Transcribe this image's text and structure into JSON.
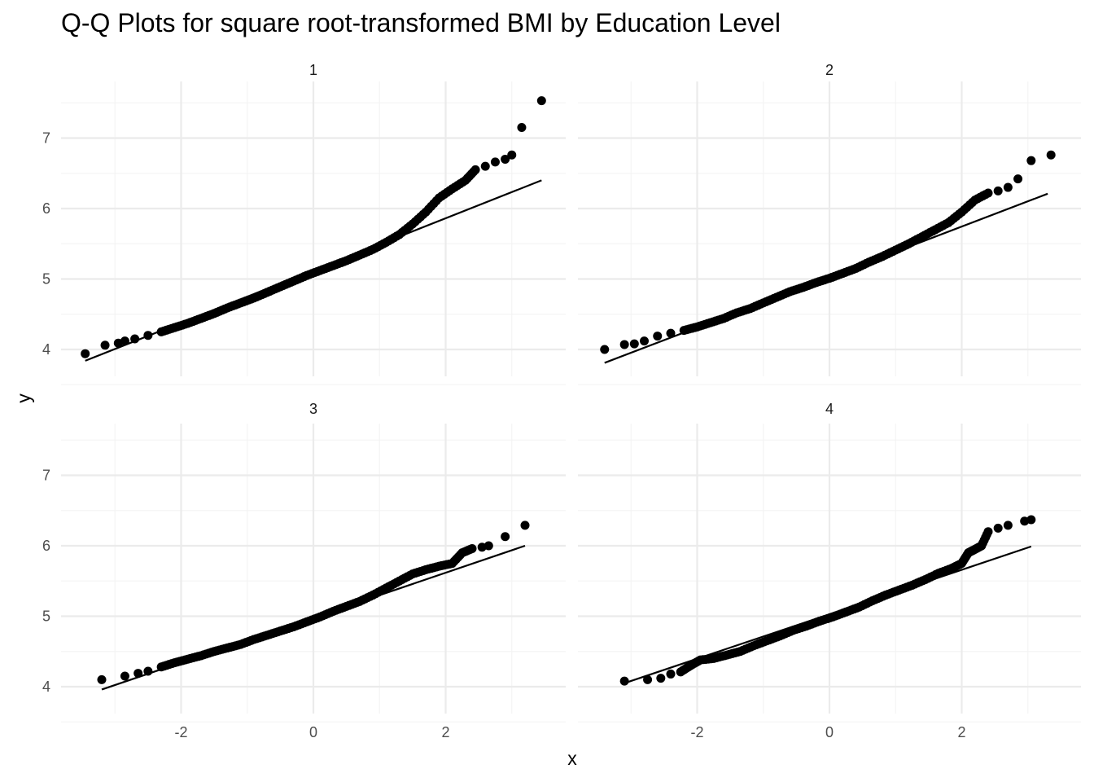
{
  "chart_data": {
    "type": "scatter",
    "title": "Q-Q Plots for square root-transformed BMI by Education Level",
    "xlabel": "x",
    "ylabel": "y",
    "xlim": [
      -3.6,
      3.6
    ],
    "ylim": [
      3.7,
      7.7
    ],
    "x_ticks": [
      -2,
      0,
      2
    ],
    "x_tick_labels": [
      "-2",
      "0",
      "2"
    ],
    "y_ticks": [
      4,
      5,
      6,
      7
    ],
    "y_tick_labels": [
      "4",
      "5",
      "6",
      "7"
    ],
    "grid": true,
    "colors": {
      "points": "#000000",
      "line": "#000000",
      "grid_major": "#ebebeb",
      "grid_minor": "#f4f4f4"
    },
    "panels": [
      {
        "label": "1",
        "line": {
          "x": [
            -3.45,
            3.45
          ],
          "y": [
            3.84,
            6.4
          ]
        },
        "points": [
          [
            -3.45,
            3.94
          ],
          [
            -3.15,
            4.06
          ],
          [
            -2.95,
            4.09
          ],
          [
            -2.85,
            4.12
          ],
          [
            -2.7,
            4.15
          ],
          [
            -2.5,
            4.2
          ],
          [
            -2.3,
            4.25
          ],
          [
            -2.1,
            4.31
          ],
          [
            -1.9,
            4.37
          ],
          [
            -1.7,
            4.44
          ],
          [
            -1.5,
            4.51
          ],
          [
            -1.3,
            4.59
          ],
          [
            -1.1,
            4.66
          ],
          [
            -0.9,
            4.73
          ],
          [
            -0.7,
            4.81
          ],
          [
            -0.5,
            4.89
          ],
          [
            -0.3,
            4.97
          ],
          [
            -0.1,
            5.05
          ],
          [
            0.1,
            5.12
          ],
          [
            0.3,
            5.19
          ],
          [
            0.5,
            5.26
          ],
          [
            0.7,
            5.34
          ],
          [
            0.9,
            5.42
          ],
          [
            1.1,
            5.52
          ],
          [
            1.3,
            5.63
          ],
          [
            1.5,
            5.78
          ],
          [
            1.7,
            5.95
          ],
          [
            1.9,
            6.15
          ],
          [
            2.1,
            6.28
          ],
          [
            2.3,
            6.4
          ],
          [
            2.45,
            6.55
          ],
          [
            2.6,
            6.6
          ],
          [
            2.75,
            6.66
          ],
          [
            2.9,
            6.7
          ],
          [
            3.0,
            6.76
          ],
          [
            3.15,
            7.15
          ],
          [
            3.45,
            7.53
          ]
        ]
      },
      {
        "label": "2",
        "line": {
          "x": [
            -3.4,
            3.3
          ],
          "y": [
            3.81,
            6.21
          ]
        },
        "points": [
          [
            -3.4,
            4.0
          ],
          [
            -3.1,
            4.07
          ],
          [
            -2.95,
            4.08
          ],
          [
            -2.8,
            4.12
          ],
          [
            -2.6,
            4.19
          ],
          [
            -2.4,
            4.23
          ],
          [
            -2.2,
            4.27
          ],
          [
            -2.0,
            4.32
          ],
          [
            -1.8,
            4.38
          ],
          [
            -1.6,
            4.44
          ],
          [
            -1.4,
            4.52
          ],
          [
            -1.2,
            4.58
          ],
          [
            -1.0,
            4.66
          ],
          [
            -0.8,
            4.74
          ],
          [
            -0.6,
            4.82
          ],
          [
            -0.4,
            4.88
          ],
          [
            -0.2,
            4.95
          ],
          [
            0.0,
            5.01
          ],
          [
            0.2,
            5.08
          ],
          [
            0.4,
            5.15
          ],
          [
            0.6,
            5.24
          ],
          [
            0.8,
            5.32
          ],
          [
            1.0,
            5.41
          ],
          [
            1.2,
            5.5
          ],
          [
            1.4,
            5.6
          ],
          [
            1.6,
            5.7
          ],
          [
            1.8,
            5.8
          ],
          [
            2.0,
            5.95
          ],
          [
            2.2,
            6.12
          ],
          [
            2.4,
            6.22
          ],
          [
            2.55,
            6.25
          ],
          [
            2.7,
            6.3
          ],
          [
            2.85,
            6.42
          ],
          [
            3.05,
            6.68
          ],
          [
            3.35,
            6.76
          ]
        ]
      },
      {
        "label": "3",
        "line": {
          "x": [
            -3.2,
            3.2
          ],
          "y": [
            3.96,
            6.0
          ]
        },
        "points": [
          [
            -3.2,
            4.1
          ],
          [
            -2.85,
            4.15
          ],
          [
            -2.65,
            4.19
          ],
          [
            -2.5,
            4.22
          ],
          [
            -2.3,
            4.28
          ],
          [
            -2.1,
            4.34
          ],
          [
            -1.9,
            4.39
          ],
          [
            -1.7,
            4.44
          ],
          [
            -1.5,
            4.5
          ],
          [
            -1.3,
            4.55
          ],
          [
            -1.1,
            4.6
          ],
          [
            -0.9,
            4.67
          ],
          [
            -0.7,
            4.73
          ],
          [
            -0.5,
            4.79
          ],
          [
            -0.3,
            4.85
          ],
          [
            -0.1,
            4.92
          ],
          [
            0.1,
            4.99
          ],
          [
            0.3,
            5.07
          ],
          [
            0.5,
            5.14
          ],
          [
            0.7,
            5.21
          ],
          [
            0.9,
            5.3
          ],
          [
            1.1,
            5.4
          ],
          [
            1.3,
            5.5
          ],
          [
            1.5,
            5.6
          ],
          [
            1.7,
            5.66
          ],
          [
            1.9,
            5.71
          ],
          [
            2.1,
            5.75
          ],
          [
            2.25,
            5.9
          ],
          [
            2.4,
            5.96
          ],
          [
            2.55,
            5.98
          ],
          [
            2.65,
            6.0
          ],
          [
            2.9,
            6.13
          ],
          [
            3.2,
            6.29
          ]
        ]
      },
      {
        "label": "4",
        "line": {
          "x": [
            -3.1,
            3.05
          ],
          "y": [
            4.05,
            5.99
          ]
        },
        "points": [
          [
            -3.1,
            4.08
          ],
          [
            -2.75,
            4.1
          ],
          [
            -2.55,
            4.12
          ],
          [
            -2.4,
            4.18
          ],
          [
            -2.25,
            4.21
          ],
          [
            -2.1,
            4.3
          ],
          [
            -1.95,
            4.38
          ],
          [
            -1.75,
            4.4
          ],
          [
            -1.55,
            4.45
          ],
          [
            -1.35,
            4.5
          ],
          [
            -1.15,
            4.58
          ],
          [
            -0.95,
            4.65
          ],
          [
            -0.75,
            4.72
          ],
          [
            -0.55,
            4.8
          ],
          [
            -0.35,
            4.86
          ],
          [
            -0.15,
            4.93
          ],
          [
            0.05,
            4.99
          ],
          [
            0.25,
            5.06
          ],
          [
            0.45,
            5.13
          ],
          [
            0.65,
            5.22
          ],
          [
            0.85,
            5.3
          ],
          [
            1.05,
            5.37
          ],
          [
            1.25,
            5.44
          ],
          [
            1.45,
            5.52
          ],
          [
            1.65,
            5.61
          ],
          [
            1.85,
            5.68
          ],
          [
            2.0,
            5.75
          ],
          [
            2.1,
            5.9
          ],
          [
            2.2,
            5.95
          ],
          [
            2.3,
            6.0
          ],
          [
            2.4,
            6.2
          ],
          [
            2.55,
            6.25
          ],
          [
            2.7,
            6.29
          ],
          [
            2.95,
            6.35
          ],
          [
            3.05,
            6.37
          ]
        ]
      }
    ]
  }
}
